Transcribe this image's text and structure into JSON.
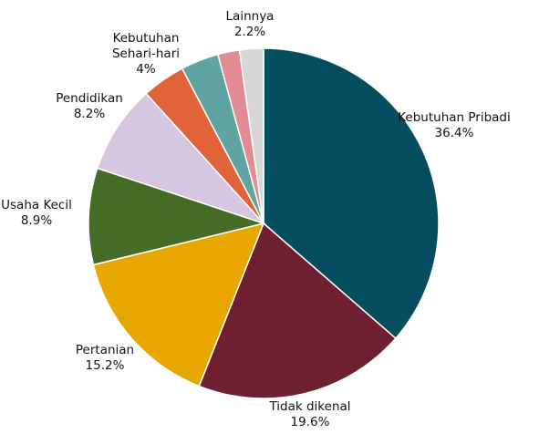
{
  "chart_data": {
    "type": "pie",
    "categories": [
      "Kebutuhan Pribadi",
      "Tidak dikenal",
      "Pertanian",
      "Usaha Kecil",
      "Pendidikan",
      "Kebutuhan\nSehari-hari",
      null,
      null,
      "Lainnya"
    ],
    "values": [
      36.4,
      19.6,
      15.2,
      8.9,
      8.2,
      4,
      3.5,
      2.0,
      2.2
    ],
    "value_labels": [
      "36.4%",
      "19.6%",
      "15.2%",
      "8.9%",
      "8.2%",
      "4%",
      null,
      null,
      "2.2%"
    ],
    "colors": [
      "#034d5f",
      "#6e1f30",
      "#e8a700",
      "#456b27",
      "#d6c6e0",
      "#e0633a",
      "#5fa3a3",
      "#e38b93",
      "#d6d6d6"
    ]
  }
}
